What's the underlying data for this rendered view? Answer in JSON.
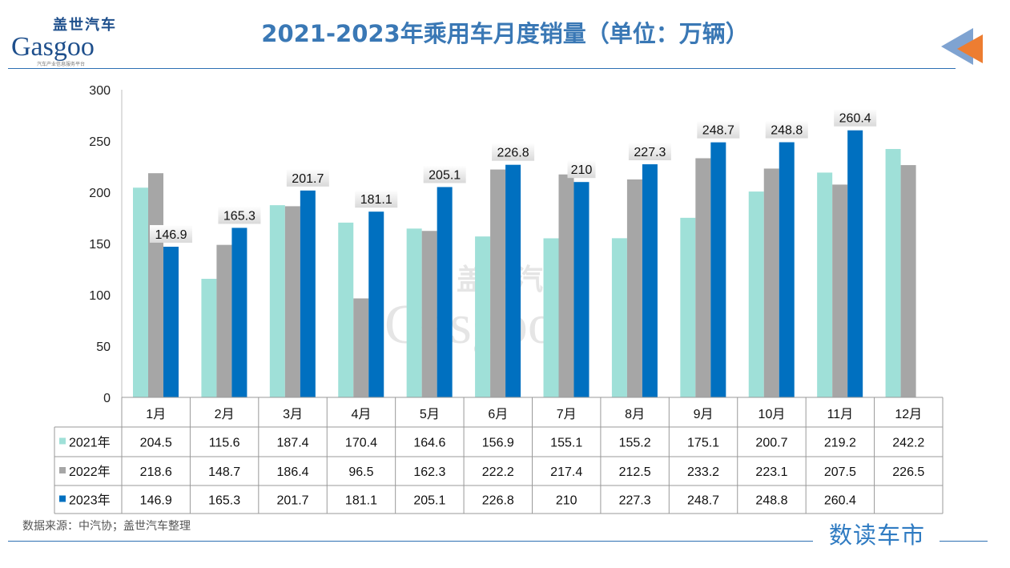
{
  "logo": {
    "cn": "盖世汽车",
    "en": "Gasgoo",
    "sub": "汽车产业信息服务平台"
  },
  "brand": "数读车市",
  "source": "数据来源：中汽协；盖世汽车整理",
  "chart_data": {
    "type": "bar",
    "title": "2021-2023年乘用车月度销量（单位：万辆）",
    "categories": [
      "1月",
      "2月",
      "3月",
      "4月",
      "5月",
      "6月",
      "7月",
      "8月",
      "9月",
      "10月",
      "11月",
      "12月"
    ],
    "ylim": [
      0,
      300
    ],
    "yticks": [
      0,
      50,
      100,
      150,
      200,
      250,
      300
    ],
    "grid": false,
    "legend": "data-table",
    "series": [
      {
        "name": "2021年",
        "color": "#9fe0d8",
        "values": [
          204.5,
          115.6,
          187.4,
          170.4,
          164.6,
          156.9,
          155.1,
          155.2,
          175.1,
          200.7,
          219.2,
          242.2
        ]
      },
      {
        "name": "2022年",
        "color": "#a6a6a6",
        "values": [
          218.6,
          148.7,
          186.4,
          96.5,
          162.3,
          222.2,
          217.4,
          212.5,
          233.2,
          223.1,
          207.5,
          226.5
        ]
      },
      {
        "name": "2023年",
        "color": "#0070c0",
        "values": [
          146.9,
          165.3,
          201.7,
          181.1,
          205.1,
          226.8,
          210,
          227.3,
          248.7,
          248.8,
          260.4,
          null
        ]
      }
    ],
    "data_labels_series": "2023年"
  }
}
